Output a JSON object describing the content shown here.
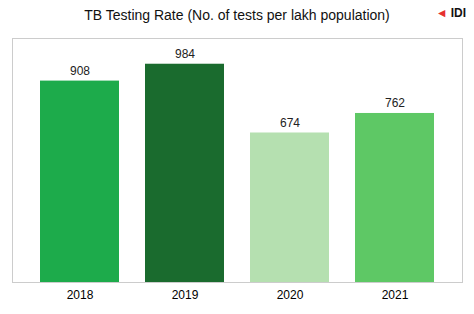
{
  "chart_data": {
    "type": "bar",
    "title": "TB Testing Rate (No. of tests per lakh population)",
    "categories": [
      "2018",
      "2019",
      "2020",
      "2021"
    ],
    "values": [
      908,
      984,
      674,
      762
    ],
    "colors": [
      "#1dab4b",
      "#1a6b2e",
      "#b5e0b0",
      "#5ec865"
    ],
    "ylim": [
      0,
      1100
    ],
    "yticks": [],
    "grid": false,
    "data_labels": true,
    "tick_labels": "x",
    "annotations": [
      {
        "text": "◄",
        "color": "#e63030"
      },
      {
        "text": "IDI",
        "color": "#111111"
      }
    ]
  }
}
